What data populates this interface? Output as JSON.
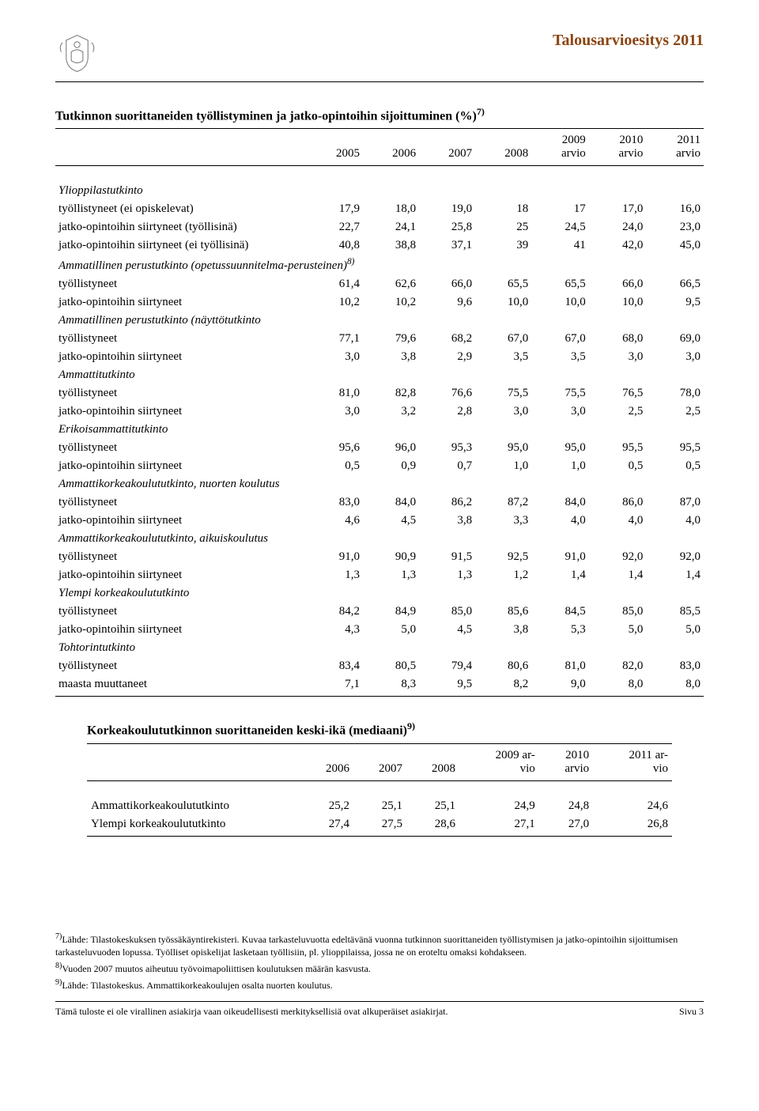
{
  "header": {
    "title": "Talousarvioesitys 2011",
    "title_color": "#8b4513"
  },
  "table1": {
    "title": "Tutkinnon suorittaneiden työllistyminen ja jatko-opintoihin sijoittuminen (%)",
    "title_sup": "7)",
    "columns": [
      "",
      "2005",
      "2006",
      "2007",
      "2008",
      "2009\narvio",
      "2010\narvio",
      "2011\narvio"
    ],
    "groups": [
      {
        "label": "Ylioppilastutkinto",
        "italic": true,
        "rows": [
          {
            "label": "työllistyneet (ei opiskelevat)",
            "vals": [
              "17,9",
              "18,0",
              "19,0",
              "18",
              "17",
              "17,0",
              "16,0"
            ]
          },
          {
            "label": "jatko-opintoihin siirtyneet (työllisinä)",
            "vals": [
              "22,7",
              "24,1",
              "25,8",
              "25",
              "24,5",
              "24,0",
              "23,0"
            ]
          },
          {
            "label": "jatko-opintoihin siirtyneet (ei työllisinä)",
            "vals": [
              "40,8",
              "38,8",
              "37,1",
              "39",
              "41",
              "42,0",
              "45,0"
            ]
          }
        ]
      },
      {
        "label": "Ammatillinen perustutkinto (opetussuunnitelma-perusteinen)",
        "italic": true,
        "sup": "8)",
        "rows": [
          {
            "label": "työllistyneet",
            "vals": [
              "61,4",
              "62,6",
              "66,0",
              "65,5",
              "65,5",
              "66,0",
              "66,5"
            ]
          },
          {
            "label": "jatko-opintoihin siirtyneet",
            "vals": [
              "10,2",
              "10,2",
              "9,6",
              "10,0",
              "10,0",
              "10,0",
              "9,5"
            ]
          }
        ]
      },
      {
        "label": "Ammatillinen perustutkinto (näyttötutkinto",
        "italic": true,
        "rows": [
          {
            "label": "työllistyneet",
            "vals": [
              "77,1",
              "79,6",
              "68,2",
              "67,0",
              "67,0",
              "68,0",
              "69,0"
            ]
          },
          {
            "label": "jatko-opintoihin siirtyneet",
            "vals": [
              "3,0",
              "3,8",
              "2,9",
              "3,5",
              "3,5",
              "3,0",
              "3,0"
            ]
          }
        ]
      },
      {
        "label": "Ammattitutkinto",
        "italic": true,
        "rows": [
          {
            "label": "työllistyneet",
            "vals": [
              "81,0",
              "82,8",
              "76,6",
              "75,5",
              "75,5",
              "76,5",
              "78,0"
            ]
          },
          {
            "label": "jatko-opintoihin siirtyneet",
            "vals": [
              "3,0",
              "3,2",
              "2,8",
              "3,0",
              "3,0",
              "2,5",
              "2,5"
            ]
          }
        ]
      },
      {
        "label": "Erikoisammattitutkinto",
        "italic": true,
        "rows": [
          {
            "label": "työllistyneet",
            "vals": [
              "95,6",
              "96,0",
              "95,3",
              "95,0",
              "95,0",
              "95,5",
              "95,5"
            ]
          },
          {
            "label": "jatko-opintoihin siirtyneet",
            "vals": [
              "0,5",
              "0,9",
              "0,7",
              "1,0",
              "1,0",
              "0,5",
              "0,5"
            ]
          }
        ]
      },
      {
        "label": "Ammattikorkeakoulututkinto, nuorten koulutus",
        "italic": true,
        "rows": [
          {
            "label": "työllistyneet",
            "vals": [
              "83,0",
              "84,0",
              "86,2",
              "87,2",
              "84,0",
              "86,0",
              "87,0"
            ]
          },
          {
            "label": "jatko-opintoihin siirtyneet",
            "vals": [
              "4,6",
              "4,5",
              "3,8",
              "3,3",
              "4,0",
              "4,0",
              "4,0"
            ]
          }
        ]
      },
      {
        "label": "Ammattikorkeakoulututkinto, aikuiskoulutus",
        "italic": true,
        "rows": [
          {
            "label": "työllistyneet",
            "vals": [
              "91,0",
              "90,9",
              "91,5",
              "92,5",
              "91,0",
              "92,0",
              "92,0"
            ]
          },
          {
            "label": "jatko-opintoihin siirtyneet",
            "vals": [
              "1,3",
              "1,3",
              "1,3",
              "1,2",
              "1,4",
              "1,4",
              "1,4"
            ]
          }
        ]
      },
      {
        "label": "Ylempi korkeakoulututkinto",
        "italic": true,
        "rows": [
          {
            "label": "työllistyneet",
            "vals": [
              "84,2",
              "84,9",
              "85,0",
              "85,6",
              "84,5",
              "85,0",
              "85,5"
            ]
          },
          {
            "label": "jatko-opintoihin siirtyneet",
            "vals": [
              "4,3",
              "5,0",
              "4,5",
              "3,8",
              "5,3",
              "5,0",
              "5,0"
            ]
          }
        ]
      },
      {
        "label": "Tohtorintutkinto",
        "italic": true,
        "rows": [
          {
            "label": "työllistyneet",
            "vals": [
              "83,4",
              "80,5",
              "79,4",
              "80,6",
              "81,0",
              "82,0",
              "83,0"
            ]
          },
          {
            "label": "maasta muuttaneet",
            "vals": [
              "7,1",
              "8,3",
              "9,5",
              "8,2",
              "9,0",
              "8,0",
              "8,0"
            ]
          }
        ]
      }
    ]
  },
  "table2": {
    "title": "Korkeakoulututkinnon suorittaneiden keski-ikä (mediaani)",
    "title_sup": "9)",
    "columns": [
      "",
      "2006",
      "2007",
      "2008",
      "2009 ar-\nvio",
      "2010\narvio",
      "2011 ar-\nvio"
    ],
    "rows": [
      {
        "label": "Ammattikorkeakoulututkinto",
        "vals": [
          "25,2",
          "25,1",
          "25,1",
          "24,9",
          "24,8",
          "24,6"
        ]
      },
      {
        "label": "Ylempi korkeakoulututkinto",
        "vals": [
          "27,4",
          "27,5",
          "28,6",
          "27,1",
          "27,0",
          "26,8"
        ]
      }
    ]
  },
  "footnotes": {
    "f7": "Lähde: Tilastokeskuksen työssäkäyntirekisteri. Kuvaa tarkasteluvuotta edeltävänä vuonna tutkinnon suorittaneiden työllistymisen ja jatko-opintoihin sijoittumisen tarkasteluvuoden lopussa. Työlliset opiskelijat lasketaan työllisiin, pl. ylioppilaissa, jossa ne on eroteltu omaksi kohdakseen.",
    "f8": "Vuoden 2007 muutos aiheutuu työvoimapoliittisen koulutuksen määrän kasvusta.",
    "f9": "Lähde: Tilastokeskus. Ammattikorkeakoulujen osalta nuorten koulutus."
  },
  "footer": {
    "left": "Tämä tuloste ei ole virallinen asiakirja vaan oikeudellisesti merkityksellisiä ovat alkuperäiset asiakirjat.",
    "right": "Sivu 3"
  }
}
